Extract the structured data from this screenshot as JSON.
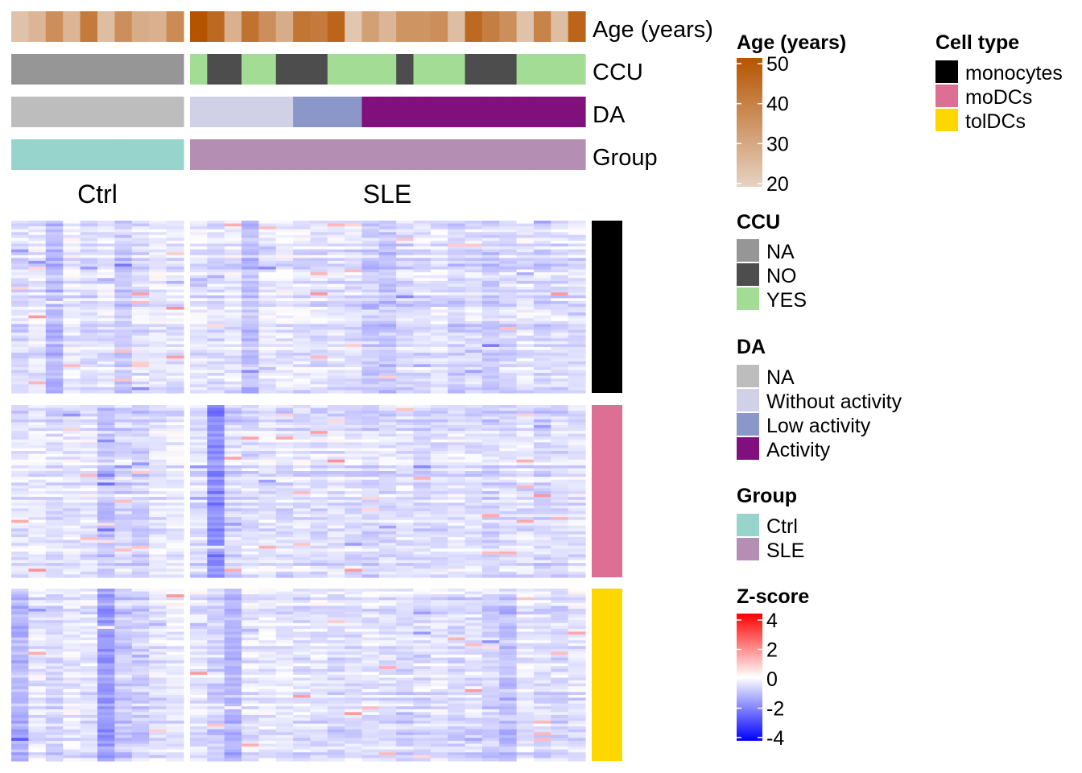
{
  "chart_data": {
    "type": "heatmap",
    "title": "",
    "column_groups": [
      {
        "name": "Ctrl",
        "n_samples": 10
      },
      {
        "name": "SLE",
        "n_samples": 23
      }
    ],
    "annotation_tracks": [
      {
        "name": "Age (years)",
        "kind": "continuous",
        "values": [
          24,
          27,
          36,
          27,
          41,
          25,
          36,
          29,
          28,
          37,
          50,
          45,
          28,
          43,
          36,
          29,
          42,
          41,
          46,
          23,
          32,
          27,
          35,
          35,
          36,
          25,
          45,
          40,
          36,
          24,
          39,
          25,
          46
        ]
      },
      {
        "name": "CCU",
        "kind": "categorical",
        "values": [
          "NA",
          "NA",
          "NA",
          "NA",
          "NA",
          "NA",
          "NA",
          "NA",
          "NA",
          "NA",
          "YES",
          "NO",
          "NO",
          "YES",
          "YES",
          "NO",
          "NO",
          "NO",
          "YES",
          "YES",
          "YES",
          "YES",
          "NO",
          "YES",
          "YES",
          "YES",
          "NO",
          "NO",
          "NO",
          "YES",
          "YES",
          "YES",
          "YES"
        ]
      },
      {
        "name": "DA",
        "kind": "categorical",
        "values": [
          "NA",
          "NA",
          "NA",
          "NA",
          "NA",
          "NA",
          "NA",
          "NA",
          "NA",
          "NA",
          "Without activity",
          "Without activity",
          "Without activity",
          "Without activity",
          "Without activity",
          "Without activity",
          "Low activity",
          "Low activity",
          "Low activity",
          "Low activity",
          "Activity",
          "Activity",
          "Activity",
          "Activity",
          "Activity",
          "Activity",
          "Activity",
          "Activity",
          "Activity",
          "Activity",
          "Activity",
          "Activity",
          "Activity"
        ]
      },
      {
        "name": "Group",
        "kind": "categorical",
        "values": [
          "Ctrl",
          "Ctrl",
          "Ctrl",
          "Ctrl",
          "Ctrl",
          "Ctrl",
          "Ctrl",
          "Ctrl",
          "Ctrl",
          "Ctrl",
          "SLE",
          "SLE",
          "SLE",
          "SLE",
          "SLE",
          "SLE",
          "SLE",
          "SLE",
          "SLE",
          "SLE",
          "SLE",
          "SLE",
          "SLE",
          "SLE",
          "SLE",
          "SLE",
          "SLE",
          "SLE",
          "SLE",
          "SLE",
          "SLE",
          "SLE",
          "SLE"
        ]
      }
    ],
    "row_groups": [
      {
        "name": "monocytes",
        "n_genes": 60,
        "column_bias": [
          -0.6,
          -0.4,
          -1.1,
          -0.3,
          -0.5,
          -0.4,
          -0.8,
          -0.5,
          -0.3,
          -0.4,
          -0.4,
          -0.5,
          -0.4,
          -1.0,
          -0.4,
          -0.3,
          -0.4,
          -0.5,
          -0.4,
          -0.5,
          -0.8,
          -0.9,
          -0.6,
          -0.5,
          -0.4,
          -0.7,
          -0.5,
          -0.8,
          -0.6,
          -0.4,
          -0.6,
          -0.5,
          -0.5
        ]
      },
      {
        "name": "moDCs",
        "n_genes": 60,
        "column_bias": [
          -0.4,
          -0.3,
          -0.5,
          -0.4,
          -0.4,
          -0.9,
          -0.6,
          -0.7,
          -0.4,
          -0.3,
          -0.5,
          -1.8,
          -0.6,
          -0.5,
          -0.4,
          -0.5,
          -0.4,
          -0.5,
          -0.4,
          -0.5,
          -0.6,
          -0.5,
          -0.4,
          -0.6,
          -0.5,
          -0.4,
          -0.5,
          -0.6,
          -0.5,
          -0.4,
          -0.6,
          -0.5,
          -0.4
        ]
      },
      {
        "name": "tolDCs",
        "n_genes": 60,
        "column_bias": [
          -1.2,
          -0.4,
          -0.6,
          -0.3,
          -0.4,
          -1.6,
          -0.8,
          -0.7,
          -0.4,
          -0.3,
          -0.4,
          -0.7,
          -1.1,
          -0.4,
          -0.3,
          -0.4,
          -0.5,
          -0.4,
          -0.6,
          -0.5,
          -0.4,
          -0.5,
          -0.6,
          -0.5,
          -0.4,
          -0.6,
          -0.5,
          -0.7,
          -0.9,
          -0.4,
          -0.5,
          -0.6,
          -0.4
        ]
      }
    ],
    "legends": {
      "age": {
        "title": "Age (years)",
        "range": [
          20,
          50
        ],
        "ticks": [
          "20",
          "30",
          "40",
          "50"
        ],
        "low_color": "#e6d3c3",
        "high_color": "#b55400"
      },
      "cell_type": {
        "title": "Cell type",
        "items": [
          {
            "label": "monocytes",
            "color": "#000000"
          },
          {
            "label": "moDCs",
            "color": "#dc6f93"
          },
          {
            "label": "tolDCs",
            "color": "#ffd700"
          }
        ]
      },
      "ccu": {
        "title": "CCU",
        "items": [
          {
            "label": "NA",
            "color": "#969696"
          },
          {
            "label": "NO",
            "color": "#4d4d4d"
          },
          {
            "label": "YES",
            "color": "#a3dc95"
          }
        ]
      },
      "da": {
        "title": "DA",
        "items": [
          {
            "label": "NA",
            "color": "#bdbdbd"
          },
          {
            "label": "Without activity",
            "color": "#d0d1e6"
          },
          {
            "label": "Low activity",
            "color": "#8b96c9"
          },
          {
            "label": "Activity",
            "color": "#810f7c"
          }
        ]
      },
      "group": {
        "title": "Group",
        "items": [
          {
            "label": "Ctrl",
            "color": "#97d5cc"
          },
          {
            "label": "SLE",
            "color": "#b48fb3"
          }
        ]
      },
      "zscore": {
        "title": "Z-score",
        "range": [
          -4,
          4
        ],
        "ticks": [
          "4",
          "2",
          "0",
          "-2",
          "-4"
        ],
        "colors": {
          "neg": "#0000ff",
          "mid": "#ffffff",
          "pos": "#ff0000"
        }
      }
    }
  }
}
